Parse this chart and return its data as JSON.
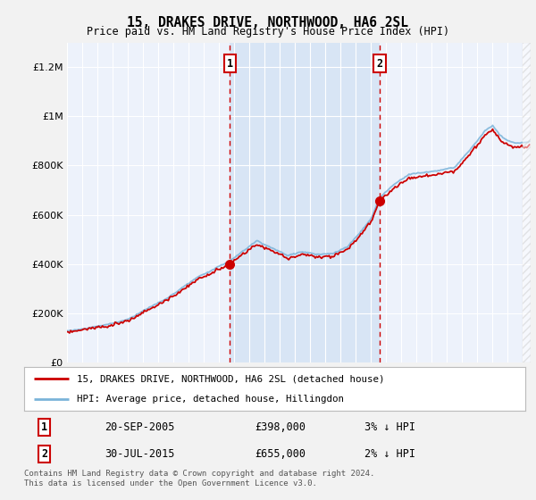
{
  "title": "15, DRAKES DRIVE, NORTHWOOD, HA6 2SL",
  "subtitle": "Price paid vs. HM Land Registry's House Price Index (HPI)",
  "ylim": [
    0,
    1300000
  ],
  "yticks": [
    0,
    200000,
    400000,
    600000,
    800000,
    1000000,
    1200000
  ],
  "ytick_labels": [
    "£0",
    "£200K",
    "£400K",
    "£600K",
    "£800K",
    "£1M",
    "£1.2M"
  ],
  "bg_color": "#f2f2f2",
  "plot_bg_color": "#edf2fb",
  "shade_color": "#d6e4f5",
  "grid_color": "#ffffff",
  "sale1_x": 2005.72,
  "sale1_price": 398000,
  "sale2_x": 2015.58,
  "sale2_price": 655000,
  "vline_color": "#cc0000",
  "hpi_line_color": "#7ab3d9",
  "price_line_color": "#cc0000",
  "marker_color": "#cc0000",
  "legend_label1": "15, DRAKES DRIVE, NORTHWOOD, HA6 2SL (detached house)",
  "legend_label2": "HPI: Average price, detached house, Hillingdon",
  "footer": "Contains HM Land Registry data © Crown copyright and database right 2024.\nThis data is licensed under the Open Government Licence v3.0.",
  "xmin": 1995.0,
  "xmax": 2025.5,
  "xticks": [
    1995,
    1996,
    1997,
    1998,
    1999,
    2000,
    2001,
    2002,
    2003,
    2004,
    2005,
    2006,
    2007,
    2008,
    2009,
    2010,
    2011,
    2012,
    2013,
    2014,
    2015,
    2016,
    2017,
    2018,
    2019,
    2020,
    2021,
    2022,
    2023,
    2024,
    2025
  ],
  "table_rows": [
    [
      "1",
      "20-SEP-2005",
      "£398,000",
      "3% ↓ HPI"
    ],
    [
      "2",
      "30-JUL-2015",
      "£655,000",
      "2% ↓ HPI"
    ]
  ]
}
